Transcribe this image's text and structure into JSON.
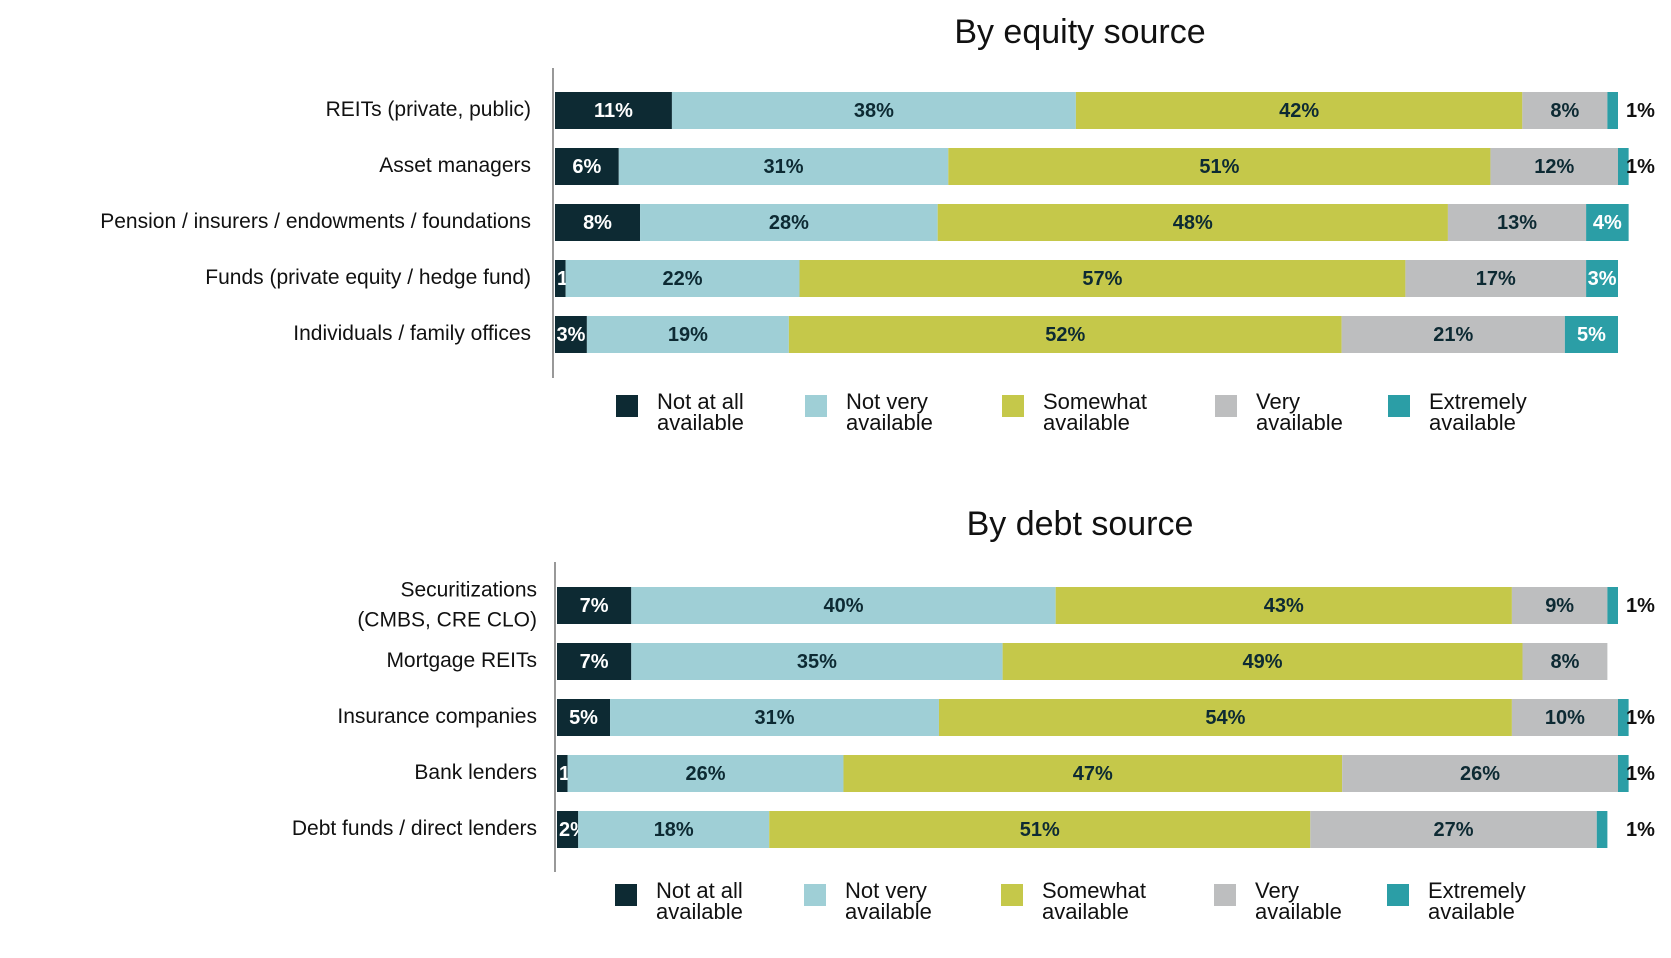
{
  "legend": [
    {
      "line1": "Not at all",
      "line2": "available"
    },
    {
      "line1": "Not very",
      "line2": "available"
    },
    {
      "line1": "Somewhat",
      "line2": "available"
    },
    {
      "line1": "Very",
      "line2": "available"
    },
    {
      "line1": "Extremely",
      "line2": "available"
    }
  ],
  "colors": [
    "#0d2a33",
    "#9fcfd6",
    "#c5c84a",
    "#bdbebf",
    "#2b9ea6"
  ],
  "chart_data": [
    {
      "type": "bar",
      "orientation": "horizontal",
      "stacked": true,
      "title": "By equity source",
      "categories": [
        [
          "REITs (private, public)"
        ],
        [
          "Asset managers"
        ],
        [
          "Pension / insurers / endowments / foundations"
        ],
        [
          "Funds (private equity / hedge fund)"
        ],
        [
          "Individuals / family offices"
        ]
      ],
      "series": [
        {
          "name": "Not at all available",
          "values": [
            11,
            6,
            8,
            1,
            3
          ]
        },
        {
          "name": "Not very available",
          "values": [
            38,
            31,
            28,
            22,
            19
          ]
        },
        {
          "name": "Somewhat available",
          "values": [
            42,
            51,
            48,
            57,
            52
          ]
        },
        {
          "name": "Very available",
          "values": [
            8,
            12,
            13,
            17,
            21
          ]
        },
        {
          "name": "Extremely available",
          "values": [
            1,
            1,
            4,
            3,
            5
          ]
        }
      ],
      "xlim": [
        0,
        100
      ],
      "legend_position": "bottom"
    },
    {
      "type": "bar",
      "orientation": "horizontal",
      "stacked": true,
      "title": "By debt source",
      "categories": [
        [
          "Securitizations",
          "(CMBS, CRE CLO)"
        ],
        [
          "Mortgage REITs"
        ],
        [
          "Insurance companies"
        ],
        [
          "Bank lenders"
        ],
        [
          "Debt funds / direct lenders"
        ]
      ],
      "series": [
        {
          "name": "Not at all available",
          "values": [
            7,
            7,
            5,
            1,
            2
          ]
        },
        {
          "name": "Not very available",
          "values": [
            40,
            35,
            31,
            26,
            18
          ]
        },
        {
          "name": "Somewhat available",
          "values": [
            43,
            49,
            54,
            47,
            51
          ]
        },
        {
          "name": "Very available",
          "values": [
            9,
            8,
            10,
            26,
            27
          ]
        },
        {
          "name": "Extremely available",
          "values": [
            1,
            0,
            1,
            1,
            1
          ]
        }
      ],
      "xlim": [
        0,
        100
      ],
      "legend_position": "bottom"
    }
  ]
}
